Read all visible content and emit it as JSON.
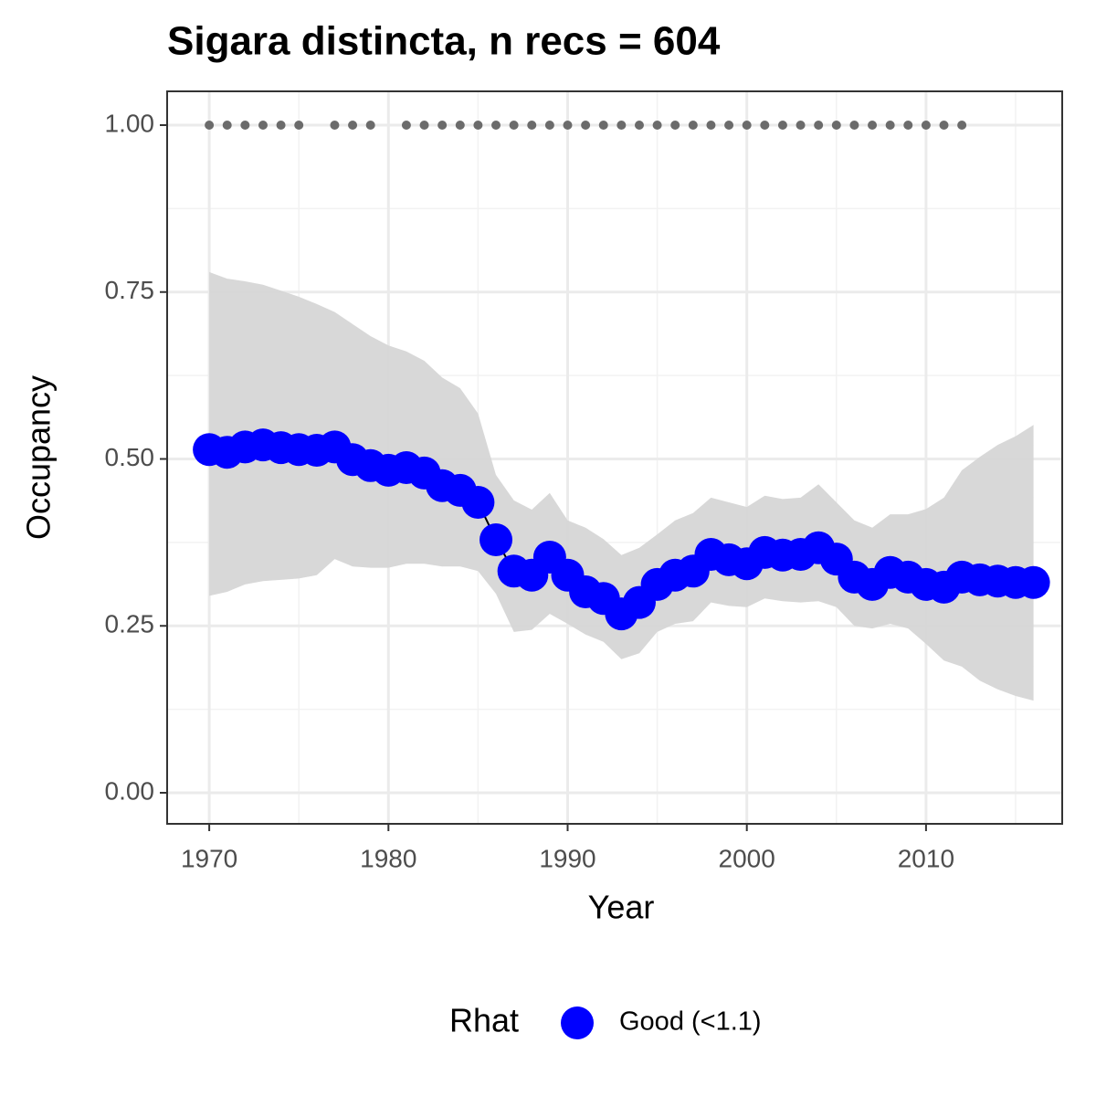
{
  "chart_data": {
    "type": "line",
    "title": "Sigara distincta, n recs = 604",
    "x_label": "Year",
    "y_label": "Occupancy",
    "x": [
      1970,
      1971,
      1972,
      1973,
      1974,
      1975,
      1976,
      1977,
      1978,
      1979,
      1980,
      1981,
      1982,
      1983,
      1984,
      1985,
      1986,
      1987,
      1988,
      1989,
      1990,
      1991,
      1992,
      1993,
      1994,
      1995,
      1996,
      1997,
      1998,
      1999,
      2000,
      2001,
      2002,
      2003,
      2004,
      2005,
      2006,
      2007,
      2008,
      2009,
      2010,
      2011,
      2012,
      2013,
      2014,
      2015,
      2016
    ],
    "series": [
      {
        "name": "Good (<1.1)",
        "color": "#0000ff",
        "values": [
          0.514,
          0.51,
          0.518,
          0.521,
          0.517,
          0.514,
          0.513,
          0.518,
          0.499,
          0.49,
          0.483,
          0.487,
          0.479,
          0.46,
          0.453,
          0.435,
          0.379,
          0.332,
          0.326,
          0.353,
          0.326,
          0.301,
          0.291,
          0.268,
          0.285,
          0.312,
          0.326,
          0.332,
          0.357,
          0.349,
          0.343,
          0.36,
          0.356,
          0.357,
          0.367,
          0.35,
          0.323,
          0.312,
          0.33,
          0.323,
          0.312,
          0.308,
          0.323,
          0.319,
          0.317,
          0.315,
          0.315
        ]
      }
    ],
    "band": {
      "color": "#d6d6d6",
      "upper": [
        0.78,
        0.77,
        0.766,
        0.761,
        0.752,
        0.743,
        0.732,
        0.72,
        0.702,
        0.684,
        0.67,
        0.661,
        0.647,
        0.622,
        0.606,
        0.568,
        0.476,
        0.438,
        0.424,
        0.449,
        0.408,
        0.397,
        0.38,
        0.356,
        0.367,
        0.387,
        0.408,
        0.419,
        0.442,
        0.435,
        0.428,
        0.445,
        0.44,
        0.442,
        0.462,
        0.435,
        0.408,
        0.397,
        0.417,
        0.417,
        0.425,
        0.442,
        0.483,
        0.503,
        0.521,
        0.534,
        0.551
      ],
      "lower": [
        0.295,
        0.301,
        0.312,
        0.317,
        0.319,
        0.321,
        0.326,
        0.35,
        0.339,
        0.337,
        0.337,
        0.343,
        0.343,
        0.339,
        0.339,
        0.332,
        0.298,
        0.241,
        0.244,
        0.268,
        0.253,
        0.237,
        0.226,
        0.2,
        0.209,
        0.241,
        0.253,
        0.257,
        0.285,
        0.28,
        0.278,
        0.291,
        0.287,
        0.285,
        0.287,
        0.278,
        0.25,
        0.246,
        0.253,
        0.246,
        0.223,
        0.198,
        0.189,
        0.168,
        0.155,
        0.145,
        0.138
      ]
    },
    "records": {
      "color": "#6b6b6b",
      "x": [
        1970,
        1971,
        1972,
        1973,
        1974,
        1975,
        1977,
        1978,
        1979,
        1981,
        1982,
        1983,
        1984,
        1985,
        1986,
        1987,
        1988,
        1989,
        1990,
        1991,
        1992,
        1993,
        1994,
        1995,
        1996,
        1997,
        1998,
        1999,
        2000,
        2001,
        2002,
        2003,
        2004,
        2005,
        2006,
        2007,
        2008,
        2009,
        2010,
        2011,
        2012
      ],
      "values": [
        1,
        1,
        1,
        1,
        1,
        1,
        1,
        1,
        1,
        1,
        1,
        1,
        1,
        1,
        1,
        1,
        1,
        1,
        1,
        1,
        1,
        1,
        1,
        1,
        1,
        1,
        1,
        1,
        1,
        1,
        1,
        1,
        1,
        1,
        1,
        1,
        1,
        1,
        1,
        1,
        1
      ]
    },
    "xlim": [
      1967.65,
      2017.6
    ],
    "ylim": [
      -0.0465,
      1.0506
    ],
    "xticks": [
      1970,
      1980,
      1990,
      2000,
      2010
    ],
    "x_minor_ticks": [
      1975,
      1985,
      1995,
      2005,
      2015
    ],
    "yticks": [
      {
        "value": 0,
        "label": "0.00"
      },
      {
        "value": 0.25,
        "label": "0.25"
      },
      {
        "value": 0.5,
        "label": "0.50"
      },
      {
        "value": 0.75,
        "label": "0.75"
      },
      {
        "value": 1,
        "label": "1.00"
      }
    ],
    "y_minor_ticks": [
      0.125,
      0.375,
      0.625,
      0.875
    ],
    "grid": true,
    "legend_title": "Rhat",
    "legend_position": "bottom"
  }
}
